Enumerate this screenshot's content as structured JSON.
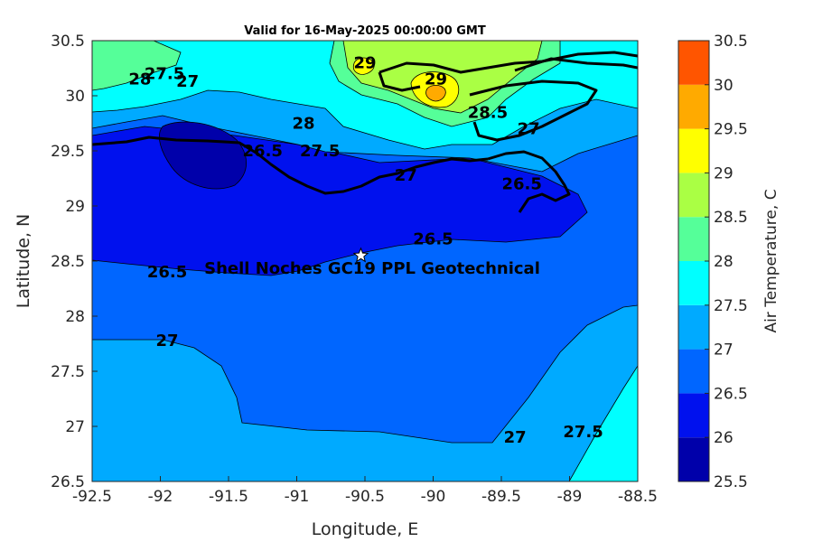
{
  "title": "Valid for 16-May-2025 00:00:00 GMT",
  "axes": {
    "xlabel": "Longitude, E",
    "ylabel": "Latitude, N",
    "xlim": [
      -92.5,
      -88.5
    ],
    "ylim": [
      26.5,
      30.5
    ],
    "x_ticks": [
      "-92.5",
      "-92",
      "-91.5",
      "-91",
      "-90.5",
      "-90",
      "-89.5",
      "-89",
      "-88.5"
    ],
    "y_ticks": [
      "30.5",
      "30",
      "29.5",
      "29",
      "28.5",
      "28",
      "27.5",
      "27",
      "26.5"
    ]
  },
  "colorbar": {
    "label": "Air Temperature, C",
    "levels": [
      "25.5",
      "26",
      "26.5",
      "27",
      "27.5",
      "28",
      "28.5",
      "29",
      "29.5",
      "30",
      "30.5"
    ],
    "colors": [
      "#0000aa",
      "#0011ee",
      "#0066ff",
      "#00aaff",
      "#00ffff",
      "#55ff99",
      "#aaff44",
      "#ffff00",
      "#ffaa00",
      "#ff5500",
      "#ff0000"
    ]
  },
  "contour_labels": [
    {
      "text": "28",
      "lon": -92.15,
      "lat": 30.15
    },
    {
      "text": "27.5",
      "lon": -91.97,
      "lat": 30.2
    },
    {
      "text": "27",
      "lon": -91.8,
      "lat": 30.13
    },
    {
      "text": "29",
      "lon": -90.5,
      "lat": 30.3
    },
    {
      "text": "29",
      "lon": -89.98,
      "lat": 30.15
    },
    {
      "text": "28",
      "lon": -90.95,
      "lat": 29.75
    },
    {
      "text": "27.5",
      "lon": -90.83,
      "lat": 29.5
    },
    {
      "text": "28.5",
      "lon": -89.6,
      "lat": 29.85
    },
    {
      "text": "27",
      "lon": -89.3,
      "lat": 29.7
    },
    {
      "text": "27",
      "lon": -90.2,
      "lat": 29.28
    },
    {
      "text": "26.5",
      "lon": -91.25,
      "lat": 29.5
    },
    {
      "text": "26.5",
      "lon": -89.35,
      "lat": 29.2
    },
    {
      "text": "26.5",
      "lon": -90.0,
      "lat": 28.7
    },
    {
      "text": "26.5",
      "lon": -91.95,
      "lat": 28.4
    },
    {
      "text": "27",
      "lon": -91.95,
      "lat": 27.78
    },
    {
      "text": "27",
      "lon": -89.4,
      "lat": 26.9
    },
    {
      "text": "27.5",
      "lon": -88.9,
      "lat": 26.95
    }
  ],
  "site": {
    "label": "Shell Noches   GC19 PPL  Geotechnical",
    "lon": -90.53,
    "lat": 28.55
  }
}
